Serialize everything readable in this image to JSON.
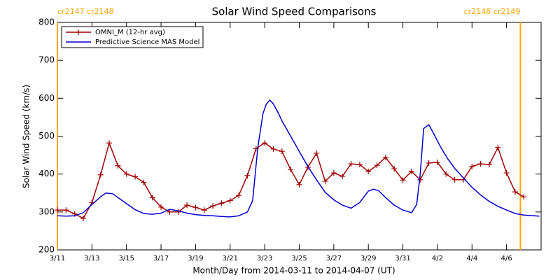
{
  "chart_data": {
    "type": "line",
    "title": "Solar Wind Speed Comparisons",
    "xlabel": "Month/Day from 2014-03-11 to 2014-04-07 (UT)",
    "ylabel": "Solar Wind Speed (km/s)",
    "xlim": [
      0,
      28
    ],
    "ylim": [
      200,
      800
    ],
    "yticks": [
      200,
      300,
      400,
      500,
      600,
      700,
      800
    ],
    "xticks": [
      {
        "value": 0,
        "label": "3/11"
      },
      {
        "value": 2,
        "label": "3/13"
      },
      {
        "value": 4,
        "label": "3/15"
      },
      {
        "value": 6,
        "label": "3/17"
      },
      {
        "value": 8,
        "label": "3/19"
      },
      {
        "value": 10,
        "label": "3/21"
      },
      {
        "value": 12,
        "label": "3/23"
      },
      {
        "value": 14,
        "label": "3/25"
      },
      {
        "value": 16,
        "label": "3/27"
      },
      {
        "value": 18,
        "label": "3/29"
      },
      {
        "value": 20,
        "label": "3/31"
      },
      {
        "value": 22,
        "label": "4/2"
      },
      {
        "value": 24,
        "label": "4/4"
      },
      {
        "value": 26,
        "label": "4/6"
      }
    ],
    "legend": "upper left",
    "annotations": [
      {
        "x": 0,
        "label": "cr2147 cr2148",
        "color": "#ffa500"
      },
      {
        "x": 26.8,
        "label": "cr2148 cr2149",
        "color": "#ffa500"
      }
    ],
    "series": [
      {
        "name": "OMNI_M (12-hr avg)",
        "color": "#a00000",
        "marker": "+",
        "x": [
          0,
          0.5,
          1,
          1.5,
          2,
          2.5,
          3,
          3.5,
          4,
          4.5,
          5,
          5.5,
          6,
          6.5,
          7,
          7.5,
          8,
          8.5,
          9,
          9.5,
          10,
          10.5,
          11,
          11.5,
          12,
          12.5,
          13,
          13.5,
          14,
          14.5,
          15,
          15.5,
          16,
          16.5,
          17,
          17.5,
          18,
          18.5,
          19,
          19.5,
          20,
          20.5,
          21,
          21.5,
          22,
          22.5,
          23,
          23.5,
          24,
          24.5,
          25,
          25.5,
          26,
          26.5,
          27
        ],
        "values": [
          305,
          305,
          295,
          283,
          325,
          398,
          482,
          422,
          400,
          393,
          378,
          338,
          313,
          300,
          300,
          318,
          312,
          305,
          316,
          323,
          330,
          344,
          396,
          467,
          482,
          466,
          460,
          412,
          372,
          418,
          455,
          381,
          403,
          394,
          427,
          425,
          407,
          423,
          444,
          414,
          384,
          407,
          385,
          429,
          431,
          400,
          385,
          385,
          420,
          427,
          425,
          470,
          403,
          353,
          340
        ]
      },
      {
        "name": "Predictive Science MAS Model",
        "color": "#0000cc",
        "x": [
          0,
          0.5,
          1,
          1.5,
          2,
          2.5,
          2.8,
          3.2,
          3.6,
          4,
          4.5,
          5,
          5.5,
          6,
          6.5,
          7,
          7.5,
          8,
          8.5,
          9,
          9.5,
          10,
          10.5,
          11,
          11.3,
          11.6,
          11.9,
          12.1,
          12.3,
          12.5,
          12.8,
          13,
          13.5,
          14,
          14.5,
          15,
          15.5,
          16,
          16.5,
          17,
          17.5,
          18,
          18.3,
          18.6,
          19,
          19.5,
          20,
          20.5,
          20.8,
          21,
          21.2,
          21.5,
          21.8,
          22.2,
          22.6,
          23,
          23.5,
          24,
          24.5,
          25,
          25.5,
          26,
          26.5,
          27,
          27.9
        ],
        "values": [
          290,
          289,
          290,
          298,
          320,
          340,
          350,
          348,
          335,
          322,
          306,
          296,
          294,
          297,
          307,
          303,
          297,
          293,
          291,
          290,
          288,
          287,
          290,
          300,
          330,
          470,
          560,
          585,
          595,
          585,
          560,
          540,
          500,
          460,
          420,
          385,
          352,
          332,
          318,
          310,
          325,
          355,
          360,
          356,
          338,
          318,
          305,
          298,
          320,
          400,
          520,
          530,
          505,
          470,
          440,
          415,
          390,
          365,
          345,
          328,
          315,
          305,
          296,
          292,
          289
        ]
      }
    ]
  }
}
